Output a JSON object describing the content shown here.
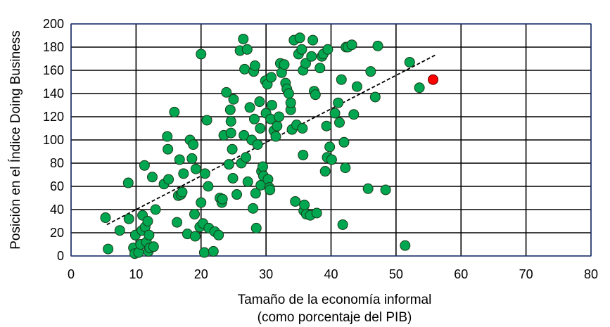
{
  "chart_data": {
    "type": "scatter",
    "title": "",
    "xlabel": [
      "Tamaño de la economía informal",
      "(como porcentaje del PIB)"
    ],
    "ylabel": "Posición en el Índice Doing Business",
    "xlim": [
      0,
      80
    ],
    "ylim": [
      0,
      200
    ],
    "xticks": [
      "0",
      "10",
      "20",
      "30",
      "40",
      "50",
      "60",
      "70",
      "80"
    ],
    "yticks": [
      "0",
      "20",
      "40",
      "60",
      "80",
      "100",
      "120",
      "140",
      "160",
      "180",
      "200"
    ],
    "grid": true,
    "colors": {
      "point": "#00a650",
      "highlight": "#ff0000",
      "trend": "#000000",
      "plot_border": "#1f3b8c"
    },
    "trendline": {
      "from": [
        5.5,
        27
      ],
      "to": [
        56,
        173
      ]
    },
    "highlight": {
      "x": 55.7,
      "y": 152
    },
    "points": [
      [
        5.3,
        33
      ],
      [
        5.7,
        6
      ],
      [
        7.5,
        22
      ],
      [
        8.8,
        63
      ],
      [
        8.9,
        32
      ],
      [
        9.6,
        7
      ],
      [
        9.8,
        2
      ],
      [
        9.9,
        18
      ],
      [
        10.4,
        3
      ],
      [
        10.7,
        10
      ],
      [
        10.9,
        22
      ],
      [
        11,
        35
      ],
      [
        11.3,
        78
      ],
      [
        11.4,
        25
      ],
      [
        11.6,
        12
      ],
      [
        11.8,
        30
      ],
      [
        11.9,
        4
      ],
      [
        12,
        18
      ],
      [
        12.1,
        7
      ],
      [
        12.5,
        68
      ],
      [
        12.7,
        8
      ],
      [
        13,
        40
      ],
      [
        14.3,
        62
      ],
      [
        14.8,
        103
      ],
      [
        14.9,
        92
      ],
      [
        15,
        66
      ],
      [
        15.9,
        124
      ],
      [
        16.3,
        29
      ],
      [
        16.5,
        52
      ],
      [
        16.7,
        83
      ],
      [
        16.9,
        53
      ],
      [
        17.1,
        55
      ],
      [
        17.3,
        71
      ],
      [
        17.9,
        19
      ],
      [
        18.3,
        100
      ],
      [
        18.6,
        84
      ],
      [
        18.8,
        96
      ],
      [
        19,
        36
      ],
      [
        19.1,
        17
      ],
      [
        19.2,
        75
      ],
      [
        19.8,
        25
      ],
      [
        20,
        46
      ],
      [
        20,
        174
      ],
      [
        20.3,
        28
      ],
      [
        20.5,
        3
      ],
      [
        20.6,
        71
      ],
      [
        20.9,
        117
      ],
      [
        21.1,
        60
      ],
      [
        21.2,
        24
      ],
      [
        21.9,
        4
      ],
      [
        22.1,
        21
      ],
      [
        22.7,
        18
      ],
      [
        22.9,
        50
      ],
      [
        23.2,
        46
      ],
      [
        23.3,
        49
      ],
      [
        23.5,
        104
      ],
      [
        23.9,
        141
      ],
      [
        24.3,
        79
      ],
      [
        24.5,
        126
      ],
      [
        24.6,
        116
      ],
      [
        24.6,
        106
      ],
      [
        24.8,
        92
      ],
      [
        24.9,
        67
      ],
      [
        25,
        135
      ],
      [
        25.5,
        53
      ],
      [
        26,
        177
      ],
      [
        26.2,
        80
      ],
      [
        26.5,
        187
      ],
      [
        26.6,
        104
      ],
      [
        26.7,
        161
      ],
      [
        26.9,
        85
      ],
      [
        27.1,
        178
      ],
      [
        27.2,
        64
      ],
      [
        27.5,
        128
      ],
      [
        27.8,
        100
      ],
      [
        28,
        41
      ],
      [
        28.1,
        159
      ],
      [
        28.2,
        118
      ],
      [
        28.3,
        164
      ],
      [
        28.4,
        54
      ],
      [
        28.5,
        24
      ],
      [
        28.7,
        96
      ],
      [
        29,
        133
      ],
      [
        29.1,
        110
      ],
      [
        29.2,
        61
      ],
      [
        29.3,
        73
      ],
      [
        29.5,
        77
      ],
      [
        29.6,
        69
      ],
      [
        29.9,
        151
      ],
      [
        30,
        123
      ],
      [
        30.2,
        148
      ],
      [
        30.3,
        66
      ],
      [
        30.5,
        59
      ],
      [
        30.6,
        57
      ],
      [
        30.7,
        118
      ],
      [
        30.8,
        154
      ],
      [
        30.9,
        130
      ],
      [
        31.2,
        108
      ],
      [
        31.5,
        103
      ],
      [
        31.7,
        112
      ],
      [
        32,
        120
      ],
      [
        32.2,
        166
      ],
      [
        32.4,
        158
      ],
      [
        32.8,
        165
      ],
      [
        33,
        149
      ],
      [
        33.2,
        144
      ],
      [
        33.5,
        140
      ],
      [
        33.8,
        126
      ],
      [
        33.8,
        132
      ],
      [
        34,
        109
      ],
      [
        34.3,
        186
      ],
      [
        34.5,
        47
      ],
      [
        34.7,
        113
      ],
      [
        35,
        174
      ],
      [
        35.2,
        188
      ],
      [
        35.5,
        178
      ],
      [
        35.6,
        110
      ],
      [
        35.7,
        87
      ],
      [
        35.7,
        160
      ],
      [
        35.8,
        39
      ],
      [
        35.9,
        44
      ],
      [
        36.1,
        166
      ],
      [
        36.2,
        36
      ],
      [
        36.8,
        35
      ],
      [
        37,
        172
      ],
      [
        37.2,
        186
      ],
      [
        37.4,
        142
      ],
      [
        37.6,
        139
      ],
      [
        37.8,
        37
      ],
      [
        38.3,
        162
      ],
      [
        38.6,
        172
      ],
      [
        38.8,
        174
      ],
      [
        39.1,
        73
      ],
      [
        39.3,
        112
      ],
      [
        39.4,
        85
      ],
      [
        39.5,
        178
      ],
      [
        39.8,
        94
      ],
      [
        40.1,
        83
      ],
      [
        40.6,
        123
      ],
      [
        41.1,
        132
      ],
      [
        41.3,
        115
      ],
      [
        41.6,
        152
      ],
      [
        41.8,
        27
      ],
      [
        42,
        98
      ],
      [
        42.2,
        76
      ],
      [
        42.3,
        180
      ],
      [
        42.6,
        180
      ],
      [
        43.2,
        182
      ],
      [
        43.5,
        122
      ],
      [
        44,
        146
      ],
      [
        45.7,
        58
      ],
      [
        46.1,
        159
      ],
      [
        46.8,
        137
      ],
      [
        47.2,
        181
      ],
      [
        48.4,
        57
      ],
      [
        51.4,
        9
      ],
      [
        52.1,
        167
      ],
      [
        53.6,
        145
      ]
    ]
  }
}
